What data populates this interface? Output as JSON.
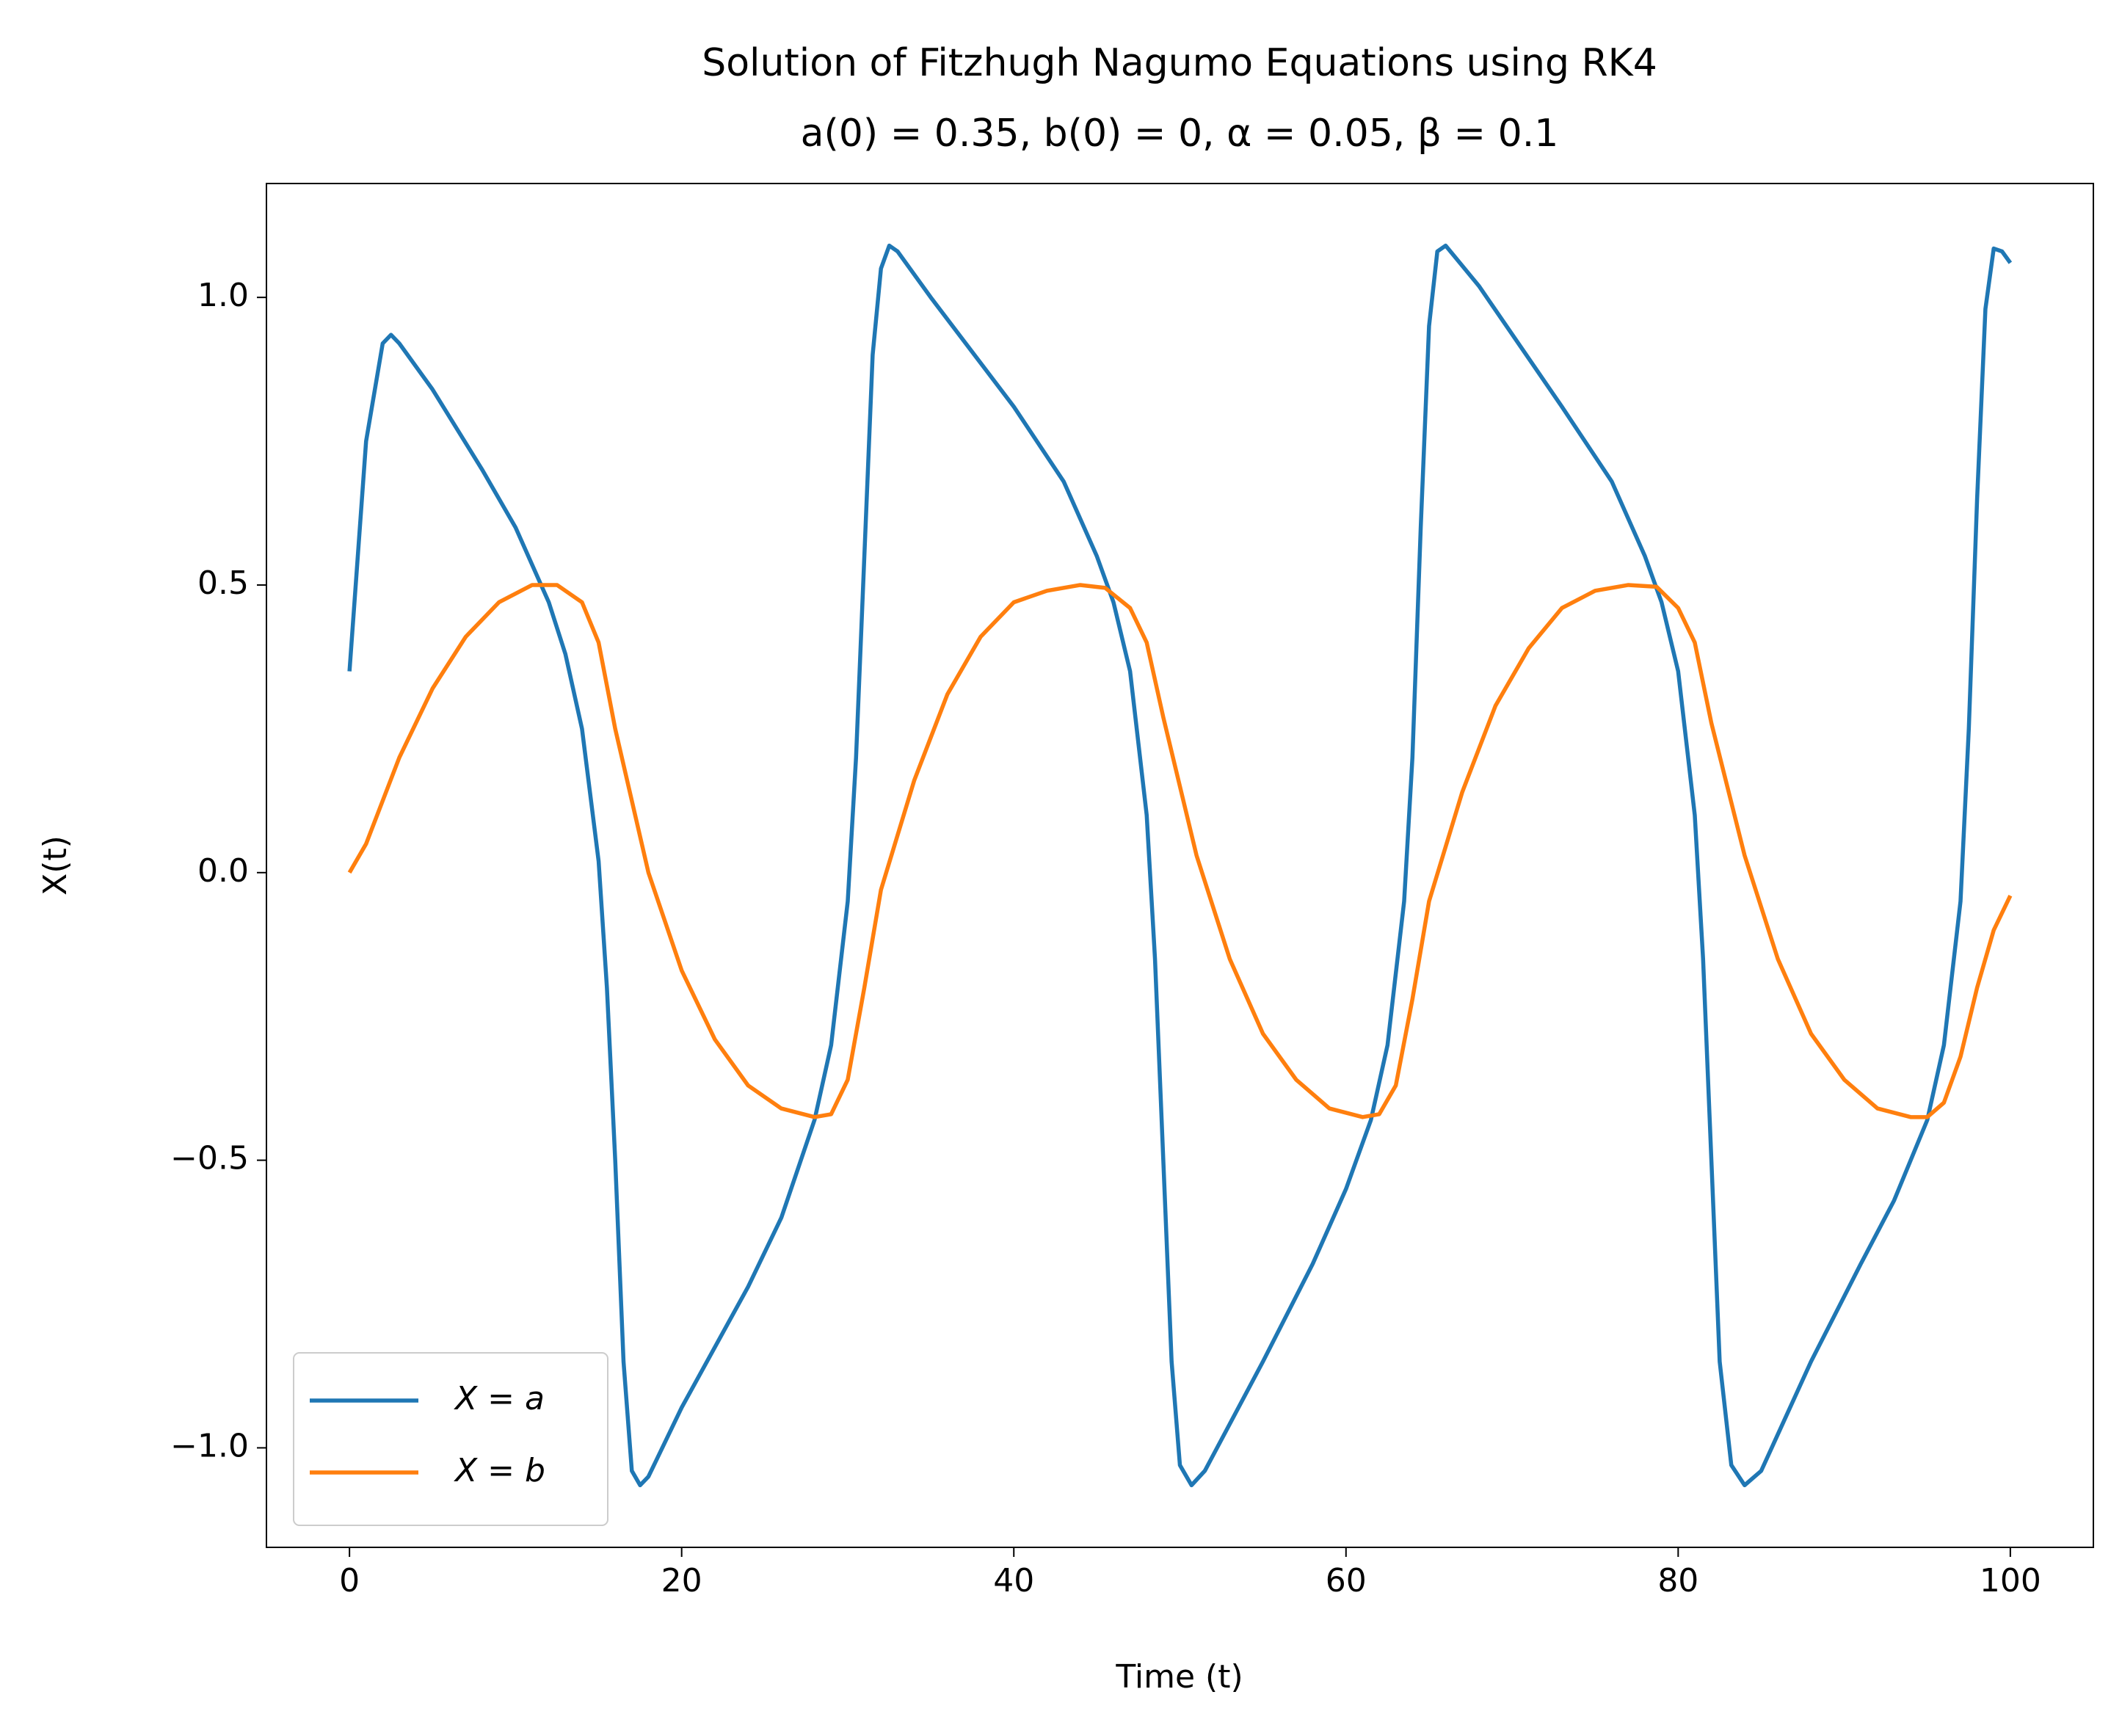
{
  "chart_data": {
    "type": "line",
    "title": "Solution of Fitzhugh Nagumo Equations using RK4",
    "subtitle": "a(0) = 0.35, b(0) = 0, α = 0.05, β = 0.1",
    "x_label": "Time (t)",
    "y_label": "X(t)",
    "xlim": [
      -5,
      105
    ],
    "ylim": [
      -1.173,
      1.198
    ],
    "xticks": [
      0,
      20,
      40,
      60,
      80,
      100
    ],
    "yticks": [
      {
        "value": -1.0,
        "label": "−1.0"
      },
      {
        "value": -0.5,
        "label": "−0.5"
      },
      {
        "value": 0.0,
        "label": "0.0"
      },
      0.5,
      {
        "value": 1.0,
        "label": "1.0"
      }
    ],
    "legend": "lower left",
    "series": [
      {
        "name": "X = a",
        "color": "#1f77b4",
        "x": [
          0,
          1,
          2,
          2.5,
          3,
          5,
          8,
          10,
          12,
          13,
          14,
          15,
          15.5,
          16,
          16.5,
          17,
          17.5,
          18,
          20,
          24,
          26,
          28,
          29,
          30,
          30.5,
          31,
          31.5,
          32,
          32.5,
          33,
          35,
          40,
          43,
          45,
          46,
          47,
          48,
          48.5,
          49,
          49.5,
          50,
          50.7,
          51.5,
          55,
          58,
          60,
          61.5,
          62.5,
          63.5,
          64,
          64.5,
          65,
          65.5,
          66,
          68,
          73,
          76,
          78,
          79,
          80,
          81,
          81.5,
          82,
          82.5,
          83.2,
          84,
          85,
          88,
          91,
          93,
          95,
          96,
          97,
          97.5,
          98,
          98.5,
          99,
          99.5,
          100
        ],
        "values": [
          0.35,
          0.75,
          0.92,
          0.935,
          0.92,
          0.84,
          0.7,
          0.6,
          0.47,
          0.38,
          0.25,
          0.02,
          -0.2,
          -0.5,
          -0.85,
          -1.04,
          -1.065,
          -1.05,
          -0.93,
          -0.72,
          -0.6,
          -0.43,
          -0.3,
          -0.05,
          0.2,
          0.55,
          0.9,
          1.05,
          1.09,
          1.08,
          1.0,
          0.81,
          0.68,
          0.55,
          0.47,
          0.35,
          0.1,
          -0.15,
          -0.5,
          -0.85,
          -1.03,
          -1.065,
          -1.04,
          -0.85,
          -0.68,
          -0.55,
          -0.43,
          -0.3,
          -0.05,
          0.2,
          0.6,
          0.95,
          1.08,
          1.09,
          1.02,
          0.81,
          0.68,
          0.55,
          0.47,
          0.35,
          0.1,
          -0.15,
          -0.5,
          -0.85,
          -1.03,
          -1.065,
          -1.04,
          -0.85,
          -0.68,
          -0.57,
          -0.43,
          -0.3,
          -0.05,
          0.25,
          0.65,
          0.98,
          1.085,
          1.08,
          1.06
        ]
      },
      {
        "name": "X = b",
        "color": "#ff7f0e",
        "x": [
          0,
          1,
          3,
          5,
          7,
          9,
          11,
          12.5,
          14,
          15,
          16,
          18,
          20,
          22,
          24,
          26,
          28,
          29,
          30,
          31,
          32,
          34,
          36,
          38,
          40,
          42,
          44,
          45.5,
          47,
          48,
          49,
          51,
          53,
          55,
          57,
          59,
          61,
          62,
          63,
          64,
          65,
          67,
          69,
          71,
          73,
          75,
          77,
          78.7,
          80,
          81,
          82,
          84,
          86,
          88,
          90,
          92,
          94,
          95,
          96,
          97,
          98,
          99,
          100
        ],
        "values": [
          0,
          0.05,
          0.2,
          0.32,
          0.41,
          0.47,
          0.5,
          0.5,
          0.47,
          0.4,
          0.25,
          0.0,
          -0.17,
          -0.29,
          -0.37,
          -0.41,
          -0.425,
          -0.42,
          -0.36,
          -0.2,
          -0.03,
          0.16,
          0.31,
          0.41,
          0.47,
          0.49,
          0.5,
          0.495,
          0.46,
          0.4,
          0.27,
          0.03,
          -0.15,
          -0.28,
          -0.36,
          -0.41,
          -0.425,
          -0.42,
          -0.37,
          -0.22,
          -0.05,
          0.14,
          0.29,
          0.39,
          0.46,
          0.49,
          0.5,
          0.497,
          0.46,
          0.4,
          0.26,
          0.03,
          -0.15,
          -0.28,
          -0.36,
          -0.41,
          -0.425,
          -0.425,
          -0.4,
          -0.32,
          -0.2,
          -0.1,
          -0.04
        ]
      }
    ]
  }
}
